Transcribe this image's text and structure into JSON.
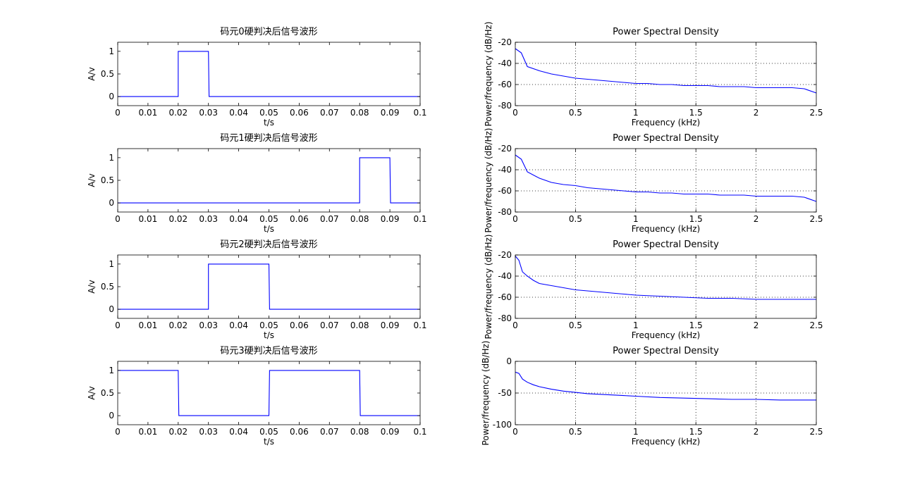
{
  "colors": {
    "line": "#0000ff",
    "axes": "#000000",
    "grid": "#000000",
    "background": "#ffffff"
  },
  "chart_data": [
    {
      "type": "line",
      "title": "码元0硬判决后信号波形",
      "xlabel": "t/s",
      "ylabel": "A/v",
      "xlim": [
        0,
        0.1
      ],
      "ylim": [
        -0.2,
        1.2
      ],
      "xticks": [
        0,
        0.01,
        0.02,
        0.03,
        0.04,
        0.05,
        0.06,
        0.07,
        0.08,
        0.09,
        0.1
      ],
      "xtick_labels": [
        "0",
        "0.01",
        "0.02",
        "0.03",
        "0.04",
        "0.05",
        "0.06",
        "0.07",
        "0.08",
        "0.09",
        "0.1"
      ],
      "yticks": [
        0,
        0.5,
        1
      ],
      "ytick_labels": [
        "0",
        "0.5",
        "1"
      ],
      "grid": false,
      "x": [
        0,
        0.02,
        0.02,
        0.0202,
        0.03,
        0.0302,
        0.1
      ],
      "y": [
        0,
        0,
        1,
        1,
        1,
        0,
        0
      ]
    },
    {
      "type": "line",
      "title": "码元1硬判决后信号波形",
      "xlabel": "t/s",
      "ylabel": "A/v",
      "xlim": [
        0,
        0.1
      ],
      "ylim": [
        -0.2,
        1.2
      ],
      "xticks": [
        0,
        0.01,
        0.02,
        0.03,
        0.04,
        0.05,
        0.06,
        0.07,
        0.08,
        0.09,
        0.1
      ],
      "xtick_labels": [
        "0",
        "0.01",
        "0.02",
        "0.03",
        "0.04",
        "0.05",
        "0.06",
        "0.07",
        "0.08",
        "0.09",
        "0.1"
      ],
      "yticks": [
        0,
        0.5,
        1
      ],
      "ytick_labels": [
        "0",
        "0.5",
        "1"
      ],
      "grid": false,
      "x": [
        0,
        0.08,
        0.08,
        0.0802,
        0.09,
        0.0902,
        0.1
      ],
      "y": [
        0,
        0,
        1,
        1,
        1,
        0,
        0
      ]
    },
    {
      "type": "line",
      "title": "码元2硬判决后信号波形",
      "xlabel": "t/s",
      "ylabel": "A/v",
      "xlim": [
        0,
        0.1
      ],
      "ylim": [
        -0.2,
        1.2
      ],
      "xticks": [
        0,
        0.01,
        0.02,
        0.03,
        0.04,
        0.05,
        0.06,
        0.07,
        0.08,
        0.09,
        0.1
      ],
      "xtick_labels": [
        "0",
        "0.01",
        "0.02",
        "0.03",
        "0.04",
        "0.05",
        "0.06",
        "0.07",
        "0.08",
        "0.09",
        "0.1"
      ],
      "yticks": [
        0,
        0.5,
        1
      ],
      "ytick_labels": [
        "0",
        "0.5",
        "1"
      ],
      "grid": false,
      "x": [
        0,
        0.03,
        0.03,
        0.0302,
        0.05,
        0.0502,
        0.1
      ],
      "y": [
        0,
        0,
        1,
        1,
        1,
        0,
        0
      ]
    },
    {
      "type": "line",
      "title": "码元3硬判决后信号波形",
      "xlabel": "t/s",
      "ylabel": "A/v",
      "xlim": [
        0,
        0.1
      ],
      "ylim": [
        -0.2,
        1.2
      ],
      "xticks": [
        0,
        0.01,
        0.02,
        0.03,
        0.04,
        0.05,
        0.06,
        0.07,
        0.08,
        0.09,
        0.1
      ],
      "xtick_labels": [
        "0",
        "0.01",
        "0.02",
        "0.03",
        "0.04",
        "0.05",
        "0.06",
        "0.07",
        "0.08",
        "0.09",
        "0.1"
      ],
      "yticks": [
        0,
        0.5,
        1
      ],
      "ytick_labels": [
        "0",
        "0.5",
        "1"
      ],
      "grid": false,
      "x": [
        0,
        0.02,
        0.0202,
        0.05,
        0.0502,
        0.08,
        0.0802,
        0.1
      ],
      "y": [
        1,
        1,
        0,
        0,
        1,
        1,
        0,
        0
      ]
    },
    {
      "type": "line",
      "title": "Power Spectral Density",
      "xlabel": "Frequency (kHz)",
      "ylabel": "Power/frequency (dB/Hz)",
      "xlim": [
        0,
        2.5
      ],
      "ylim": [
        -80,
        -20
      ],
      "xticks": [
        0,
        0.5,
        1,
        1.5,
        2,
        2.5
      ],
      "xtick_labels": [
        "0",
        "0.5",
        "1",
        "1.5",
        "2",
        "2.5"
      ],
      "yticks": [
        -20,
        -40,
        -60,
        -80
      ],
      "ytick_labels": [
        "-20",
        "-40",
        "-60",
        "-80"
      ],
      "grid": true,
      "x": [
        0,
        0.05,
        0.1,
        0.2,
        0.3,
        0.4,
        0.5,
        0.6,
        0.7,
        0.8,
        0.9,
        1.0,
        1.1,
        1.2,
        1.3,
        1.4,
        1.5,
        1.6,
        1.7,
        1.8,
        1.9,
        2.0,
        2.1,
        2.2,
        2.3,
        2.4,
        2.5
      ],
      "y": [
        -26,
        -30,
        -43,
        -47,
        -50,
        -52,
        -54,
        -55,
        -56,
        -57,
        -58,
        -59,
        -59,
        -60,
        -60,
        -61,
        -61,
        -61,
        -62,
        -62,
        -62,
        -63,
        -63,
        -63,
        -63,
        -64,
        -68
      ]
    },
    {
      "type": "line",
      "title": "Power Spectral Density",
      "xlabel": "Frequency (kHz)",
      "ylabel": "Power/frequency (dB/Hz)",
      "xlim": [
        0,
        2.5
      ],
      "ylim": [
        -80,
        -20
      ],
      "xticks": [
        0,
        0.5,
        1,
        1.5,
        2,
        2.5
      ],
      "xtick_labels": [
        "0",
        "0.5",
        "1",
        "1.5",
        "2",
        "2.5"
      ],
      "yticks": [
        -20,
        -40,
        -60,
        -80
      ],
      "ytick_labels": [
        "-20",
        "-40",
        "-60",
        "-80"
      ],
      "grid": true,
      "x": [
        0,
        0.05,
        0.1,
        0.2,
        0.3,
        0.4,
        0.5,
        0.6,
        0.7,
        0.8,
        0.9,
        1.0,
        1.1,
        1.2,
        1.3,
        1.4,
        1.5,
        1.6,
        1.7,
        1.8,
        1.9,
        2.0,
        2.1,
        2.2,
        2.3,
        2.4,
        2.5
      ],
      "y": [
        -26,
        -30,
        -42,
        -48,
        -52,
        -54,
        -55,
        -57,
        -58,
        -59,
        -60,
        -61,
        -61,
        -62,
        -62,
        -63,
        -63,
        -63,
        -64,
        -64,
        -64,
        -65,
        -65,
        -65,
        -65,
        -66,
        -70
      ]
    },
    {
      "type": "line",
      "title": "Power Spectral Density",
      "xlabel": "Frequency (kHz)",
      "ylabel": "Power/frequency (dB/Hz)",
      "xlim": [
        0,
        2.5
      ],
      "ylim": [
        -80,
        -20
      ],
      "xticks": [
        0,
        0.5,
        1,
        1.5,
        2,
        2.5
      ],
      "xtick_labels": [
        "0",
        "0.5",
        "1",
        "1.5",
        "2",
        "2.5"
      ],
      "yticks": [
        -20,
        -40,
        -60,
        -80
      ],
      "ytick_labels": [
        "-20",
        "-40",
        "-60",
        "-80"
      ],
      "grid": true,
      "x": [
        0,
        0.03,
        0.06,
        0.1,
        0.15,
        0.2,
        0.3,
        0.4,
        0.5,
        0.6,
        0.7,
        0.8,
        0.9,
        1.0,
        1.2,
        1.4,
        1.6,
        1.8,
        2.0,
        2.2,
        2.4,
        2.5
      ],
      "y": [
        -21,
        -25,
        -36,
        -40,
        -44,
        -47,
        -49,
        -51,
        -53,
        -54,
        -55,
        -56,
        -57,
        -58,
        -59,
        -60,
        -61,
        -61,
        -62,
        -62,
        -62,
        -62
      ]
    },
    {
      "type": "line",
      "title": "Power Spectral Density",
      "xlabel": "Frequency (kHz)",
      "ylabel": "Power/frequency (dB/Hz)",
      "xlim": [
        0,
        2.5
      ],
      "ylim": [
        -100,
        0
      ],
      "xticks": [
        0,
        0.5,
        1,
        1.5,
        2,
        2.5
      ],
      "xtick_labels": [
        "0",
        "0.5",
        "1",
        "1.5",
        "2",
        "2.5"
      ],
      "yticks": [
        0,
        -50,
        -100
      ],
      "ytick_labels": [
        "0",
        "-50",
        "-100"
      ],
      "grid": true,
      "x": [
        0,
        0.03,
        0.06,
        0.1,
        0.15,
        0.2,
        0.3,
        0.4,
        0.5,
        0.6,
        0.7,
        0.8,
        0.9,
        1.0,
        1.2,
        1.4,
        1.6,
        1.8,
        2.0,
        2.2,
        2.4,
        2.5
      ],
      "y": [
        -17,
        -19,
        -28,
        -33,
        -37,
        -40,
        -44,
        -47,
        -49,
        -51,
        -52,
        -53,
        -54,
        -55,
        -57,
        -58,
        -59,
        -60,
        -60,
        -61,
        -61,
        -61
      ]
    }
  ]
}
